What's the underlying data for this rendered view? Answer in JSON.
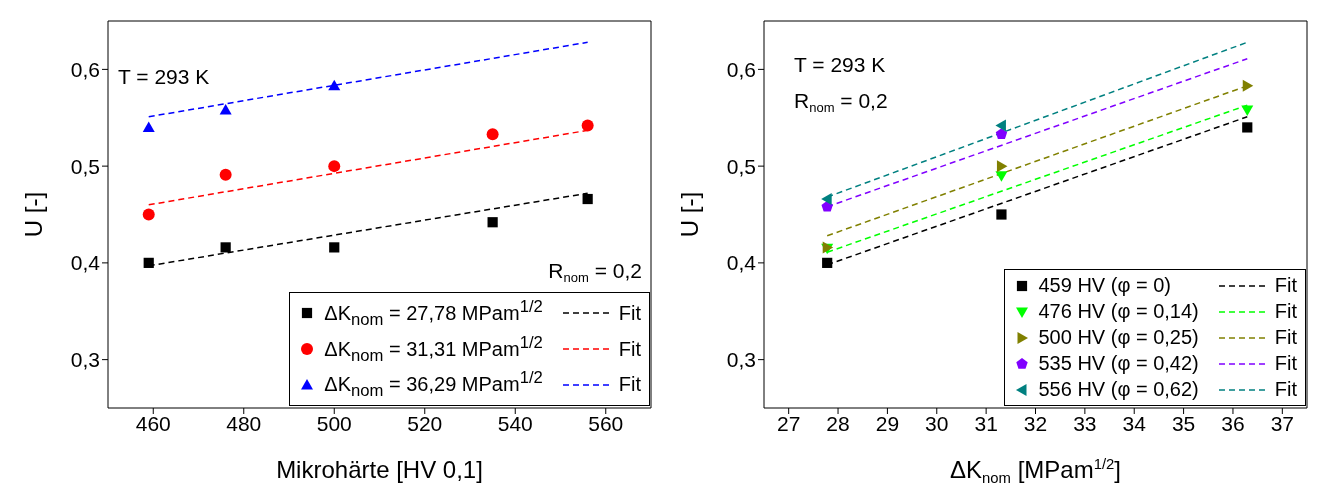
{
  "chart_data": [
    {
      "type": "scatter",
      "xlabel": "Mikrohärte [HV 0,1]",
      "ylabel": "U [-]",
      "annotations": [
        "T = 293 K",
        "R$_{nom}$ = 0,2"
      ],
      "xlim": [
        450,
        570
      ],
      "xticks": [
        460,
        480,
        500,
        520,
        540,
        560
      ],
      "ylim": [
        0.25,
        0.65
      ],
      "yticks": [
        {
          "value": 0.3,
          "label": "0,3"
        },
        {
          "value": 0.4,
          "label": "0,4"
        },
        {
          "value": 0.5,
          "label": "0,5"
        },
        {
          "value": 0.6,
          "label": "0,6"
        }
      ],
      "legend": "bottom right",
      "series": [
        {
          "name": "ΔK$_{nom}$ = 27,78 MPam$^{1/2}$",
          "marker": "square",
          "color": "#000000",
          "x": [
            459,
            476,
            500,
            535,
            556
          ],
          "values": [
            0.4,
            0.416,
            0.416,
            0.442,
            0.466
          ]
        },
        {
          "name": "Fit",
          "type": "line",
          "marker": "none",
          "line_style": "dashed",
          "color": "#000000",
          "x": [
            459,
            556
          ],
          "values": [
            0.397,
            0.472
          ]
        },
        {
          "name": "ΔK$_{nom}$ = 31,31 MPam$^{1/2}$",
          "marker": "circle",
          "color": "#ff0000",
          "x": [
            459,
            476,
            500,
            535,
            556
          ],
          "values": [
            0.45,
            0.491,
            0.5,
            0.533,
            0.542
          ]
        },
        {
          "name": "Fit",
          "type": "line",
          "marker": "none",
          "line_style": "dashed",
          "color": "#ff0000",
          "x": [
            459,
            556
          ],
          "values": [
            0.46,
            0.537
          ]
        },
        {
          "name": "ΔK$_{nom}$ = 36,29 MPam$^{1/2}$",
          "marker": "triangle",
          "color": "#0000ff",
          "x": [
            459,
            476,
            500
          ],
          "values": [
            0.54,
            0.558,
            0.583
          ]
        },
        {
          "name": "Fit",
          "type": "line",
          "marker": "none",
          "line_style": "dashed",
          "color": "#0000ff",
          "x": [
            459,
            556
          ],
          "values": [
            0.551,
            0.628
          ]
        }
      ]
    },
    {
      "type": "scatter",
      "xlabel": "ΔK$_{nom}$ [MPam$^{1/2}$]",
      "ylabel": "U [-]",
      "annotations": [
        "T = 293 K",
        "R$_{nom}$ = 0,2"
      ],
      "xlim": [
        26.5,
        37.5
      ],
      "xticks": [
        27,
        28,
        29,
        30,
        31,
        32,
        33,
        34,
        35,
        36,
        37
      ],
      "ylim": [
        0.25,
        0.65
      ],
      "yticks": [
        {
          "value": 0.3,
          "label": "0,3"
        },
        {
          "value": 0.4,
          "label": "0,4"
        },
        {
          "value": 0.5,
          "label": "0,5"
        },
        {
          "value": 0.6,
          "label": "0,6"
        }
      ],
      "legend": "bottom right",
      "series": [
        {
          "name": "459 HV (φ = 0)",
          "marker": "square",
          "color": "#000000",
          "x": [
            27.78,
            31.31,
            36.29
          ],
          "values": [
            0.4,
            0.45,
            0.54
          ]
        },
        {
          "name": "Fit",
          "type": "line",
          "marker": "none",
          "line_style": "dashed",
          "color": "#000000",
          "x": [
            27.78,
            36.29
          ],
          "values": [
            0.398,
            0.551
          ]
        },
        {
          "name": "476 HV (φ = 0,14)",
          "marker": "triangle-down",
          "color": "#00ff00",
          "x": [
            27.78,
            31.31,
            36.29
          ],
          "values": [
            0.415,
            0.49,
            0.558
          ]
        },
        {
          "name": "Fit",
          "type": "line",
          "marker": "none",
          "line_style": "dashed",
          "color": "#00ff00",
          "x": [
            27.78,
            36.29
          ],
          "values": [
            0.411,
            0.563
          ]
        },
        {
          "name": "500 HV (φ = 0,25)",
          "marker": "triangle-right",
          "color": "#808000",
          "x": [
            27.78,
            31.31,
            36.29
          ],
          "values": [
            0.416,
            0.5,
            0.583
          ]
        },
        {
          "name": "Fit",
          "type": "line",
          "marker": "none",
          "line_style": "dashed",
          "color": "#808000",
          "x": [
            27.78,
            36.29
          ],
          "values": [
            0.428,
            0.583
          ]
        },
        {
          "name": "535 HV (φ = 0,42)",
          "color": "#8000ff",
          "x": [
            27.78,
            31.31
          ],
          "values": [
            0.458,
            0.533
          ]
        },
        {
          "name": "Fit",
          "type": "line",
          "marker": "none",
          "line_style": "dashed",
          "color": "#8000ff",
          "x": [
            27.78,
            36.29
          ],
          "values": [
            0.458,
            0.611
          ]
        },
        {
          "name": "556 HV (φ = 0,62)",
          "marker": "triangle-left",
          "color": "#008080",
          "x": [
            27.78,
            31.31
          ],
          "values": [
            0.466,
            0.542
          ]
        },
        {
          "name": "Fit",
          "type": "line",
          "marker": "none",
          "line_style": "dashed",
          "color": "#008080",
          "x": [
            27.78,
            36.29
          ],
          "values": [
            0.468,
            0.628
          ]
        }
      ]
    }
  ]
}
